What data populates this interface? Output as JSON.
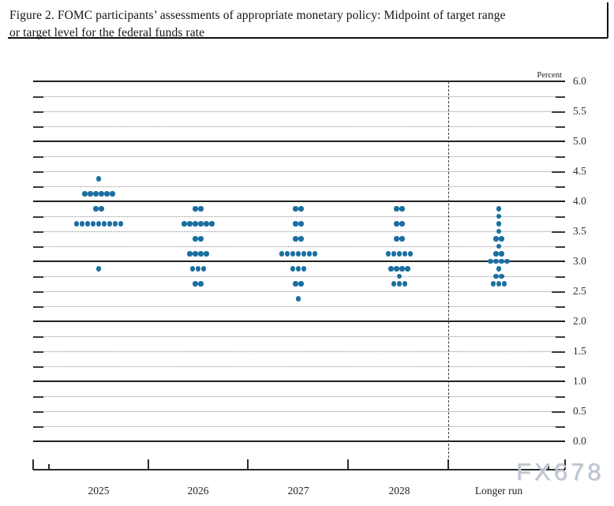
{
  "figure": {
    "title_lines": [
      "Figure 2. FOMC participants’ assessments of appropriate monetary policy: Midpoint of target range",
      "or target level for the federal funds rate"
    ]
  },
  "chart_data": {
    "type": "scatter",
    "subtype": "fomc-dot-plot",
    "title": "FOMC participants’ assessments of appropriate monetary policy: Midpoint of target range or target level for the federal funds rate",
    "unit_label": "Percent",
    "xlabel": "",
    "ylabel": "Percent",
    "categories": [
      "2025",
      "2026",
      "2027",
      "2028",
      "Longer run"
    ],
    "ylim": [
      0.0,
      6.0
    ],
    "y_labeled_tick_step": 0.5,
    "y_grid_step": 0.25,
    "y_tick_labels": [
      "6.0",
      "5.5",
      "5.0",
      "4.5",
      "4.0",
      "3.5",
      "3.0",
      "2.5",
      "2.0",
      "1.5",
      "1.0",
      "0.5",
      "0.0"
    ],
    "grid_style": "solid horizontal lines at whole percents, dotted lines at quarter percents",
    "legend": "none",
    "separator": "vertical dashed line between 2028 and Longer run",
    "dot_color": "#1b6fa0",
    "series": [
      {
        "category": "2025",
        "dots": [
          {
            "rate": 4.375,
            "count": 1
          },
          {
            "rate": 4.125,
            "count": 6
          },
          {
            "rate": 3.875,
            "count": 2
          },
          {
            "rate": 3.625,
            "count": 9
          },
          {
            "rate": 2.875,
            "count": 1
          }
        ]
      },
      {
        "category": "2026",
        "dots": [
          {
            "rate": 3.875,
            "count": 2
          },
          {
            "rate": 3.625,
            "count": 6
          },
          {
            "rate": 3.375,
            "count": 2
          },
          {
            "rate": 3.125,
            "count": 4
          },
          {
            "rate": 2.875,
            "count": 3
          },
          {
            "rate": 2.625,
            "count": 2
          }
        ]
      },
      {
        "category": "2027",
        "dots": [
          {
            "rate": 3.875,
            "count": 2
          },
          {
            "rate": 3.625,
            "count": 2
          },
          {
            "rate": 3.375,
            "count": 2
          },
          {
            "rate": 3.125,
            "count": 7
          },
          {
            "rate": 2.875,
            "count": 3
          },
          {
            "rate": 2.625,
            "count": 2
          },
          {
            "rate": 2.375,
            "count": 1
          }
        ]
      },
      {
        "category": "2028",
        "dots": [
          {
            "rate": 3.875,
            "count": 2
          },
          {
            "rate": 3.625,
            "count": 2
          },
          {
            "rate": 3.375,
            "count": 2
          },
          {
            "rate": 3.125,
            "count": 5
          },
          {
            "rate": 2.875,
            "count": 4
          },
          {
            "rate": 2.75,
            "count": 1
          },
          {
            "rate": 2.625,
            "count": 3
          }
        ]
      },
      {
        "category": "Longer run",
        "dots": [
          {
            "rate": 3.875,
            "count": 1
          },
          {
            "rate": 3.75,
            "count": 1
          },
          {
            "rate": 3.625,
            "count": 1
          },
          {
            "rate": 3.5,
            "count": 1
          },
          {
            "rate": 3.375,
            "count": 2
          },
          {
            "rate": 3.25,
            "count": 1
          },
          {
            "rate": 3.125,
            "count": 2
          },
          {
            "rate": 3.0,
            "count": 4
          },
          {
            "rate": 2.875,
            "count": 1
          },
          {
            "rate": 2.75,
            "count": 2
          },
          {
            "rate": 2.625,
            "count": 3
          }
        ]
      }
    ],
    "watermark": "FX678"
  }
}
